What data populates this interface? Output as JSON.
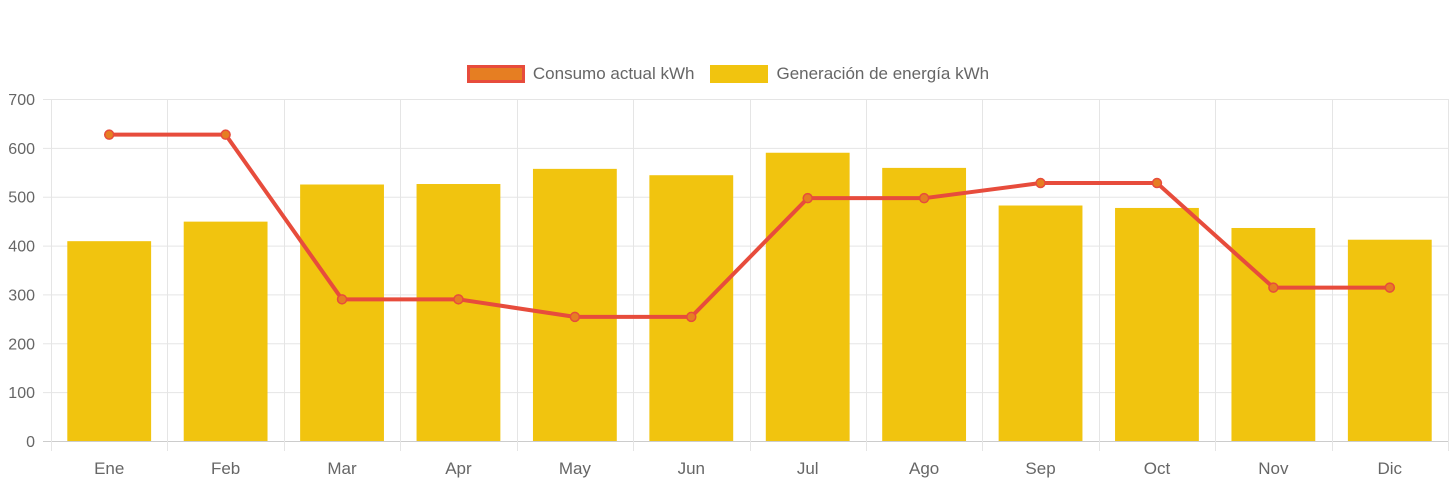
{
  "chart_data": {
    "type": "bar",
    "categories": [
      "Ene",
      "Feb",
      "Mar",
      "Apr",
      "May",
      "Jun",
      "Jul",
      "Ago",
      "Sep",
      "Oct",
      "Nov",
      "Dic"
    ],
    "series": [
      {
        "name": "Consumo actual kWh",
        "type": "line",
        "values": [
          627,
          627,
          290,
          290,
          254,
          254,
          497,
          497,
          528,
          528,
          314,
          314
        ],
        "color": "#e74c3c",
        "fill": "#e67e22"
      },
      {
        "name": "Generación de energía kWh",
        "type": "bar",
        "values": [
          409,
          449,
          525,
          526,
          557,
          544,
          590,
          559,
          482,
          477,
          436,
          412
        ],
        "color": "#f1c40f"
      }
    ],
    "ylim": [
      0,
      700
    ],
    "yticks": [
      0,
      100,
      200,
      300,
      400,
      500,
      600,
      700
    ],
    "grid": true,
    "legend": "top-center"
  }
}
